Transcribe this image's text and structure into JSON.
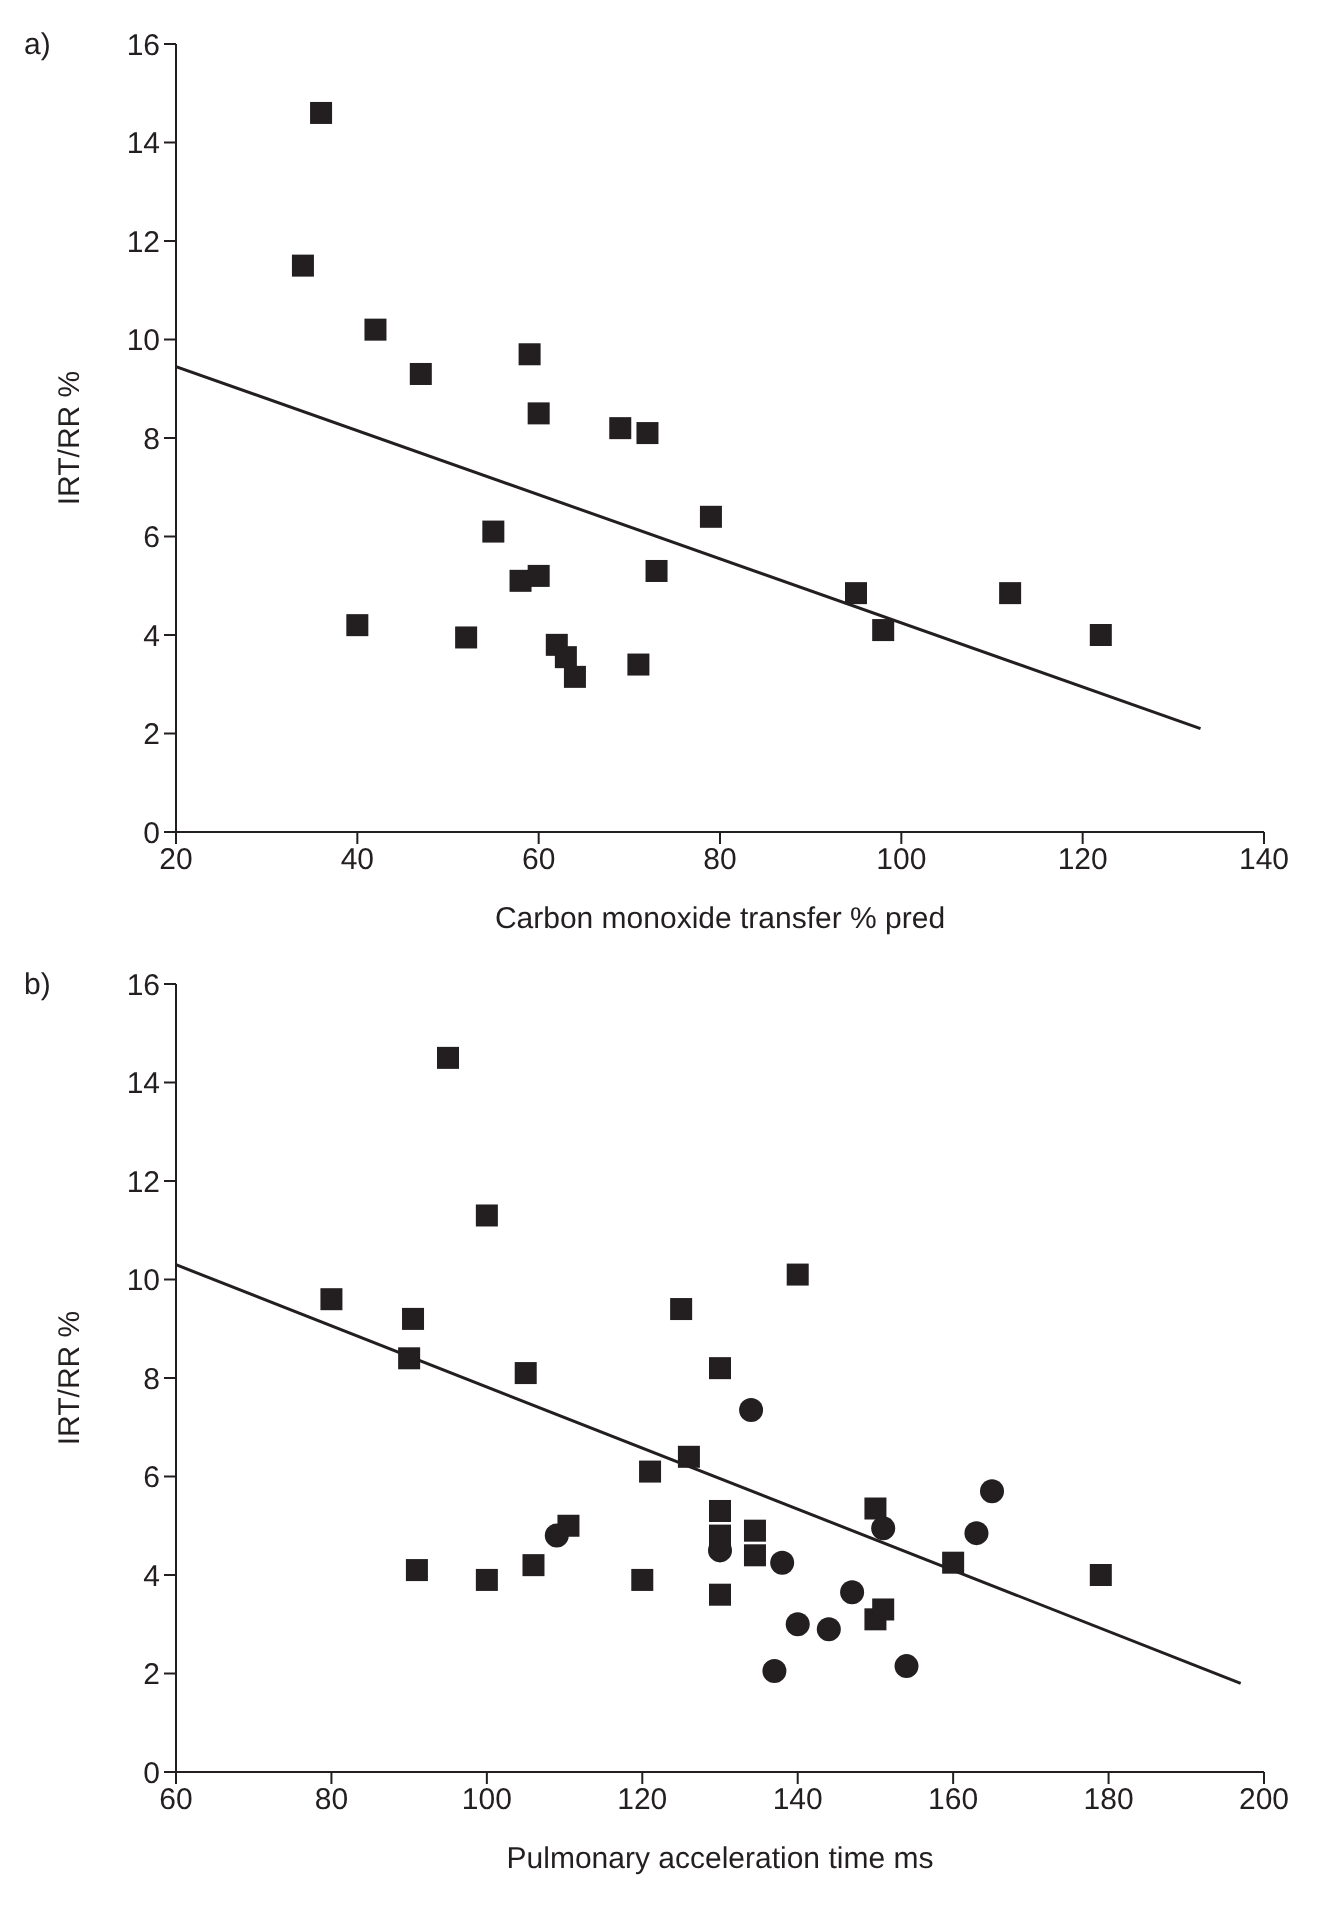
{
  "chart_data": [
    {
      "type": "scatter",
      "annotations": [
        "a)"
      ],
      "xlabel": "Carbon monoxide transfer % pred",
      "ylabel": "IRT/RR %",
      "xlim": [
        20,
        140
      ],
      "xticks": [
        20,
        40,
        60,
        80,
        100,
        120,
        140
      ],
      "ylim": [
        0,
        16
      ],
      "yticks": [
        0,
        2,
        4,
        6,
        8,
        10,
        12,
        14,
        16
      ],
      "grid": false,
      "legend": false,
      "series": [
        {
          "color": "#231f20",
          "marker": "square",
          "x": [
            34,
            36,
            42,
            47,
            40,
            52,
            55,
            58,
            59,
            60,
            60,
            62,
            63,
            64,
            69,
            71,
            72,
            73,
            79,
            95,
            98,
            112,
            122
          ],
          "values": [
            11.5,
            14.6,
            10.2,
            9.3,
            4.2,
            3.95,
            6.1,
            5.1,
            9.7,
            8.5,
            5.2,
            3.8,
            3.55,
            3.15,
            8.2,
            3.4,
            8.1,
            5.3,
            6.4,
            4.85,
            4.1,
            4.85,
            4.0
          ]
        },
        {
          "type": "line",
          "color": "#231f20",
          "marker": "none",
          "x": [
            20,
            133
          ],
          "values": [
            9.45,
            2.1
          ]
        }
      ]
    },
    {
      "type": "scatter",
      "annotations": [
        "b)"
      ],
      "xlabel": "Pulmonary acceleration time ms",
      "ylabel": "IRT/RR %",
      "xlim": [
        60,
        200
      ],
      "xticks": [
        60,
        80,
        100,
        120,
        140,
        160,
        180,
        200
      ],
      "ylim": [
        0,
        16
      ],
      "yticks": [
        0,
        2,
        4,
        6,
        8,
        10,
        12,
        14,
        16
      ],
      "grid": false,
      "legend": false,
      "series": [
        {
          "color": "#231f20",
          "marker": "square",
          "x": [
            80,
            90,
            90.5,
            91,
            95,
            100,
            100,
            105,
            106,
            110.5,
            120,
            121,
            125,
            126,
            130,
            130,
            130,
            130,
            134.5,
            134.5,
            140,
            150,
            150,
            151,
            160,
            179
          ],
          "values": [
            9.6,
            8.4,
            9.2,
            4.1,
            14.5,
            11.3,
            3.9,
            8.1,
            4.2,
            5.0,
            3.9,
            6.1,
            9.4,
            6.4,
            8.2,
            5.3,
            4.8,
            3.6,
            4.9,
            4.4,
            10.1,
            5.35,
            3.1,
            3.3,
            4.25,
            4.0
          ]
        },
        {
          "color": "#231f20",
          "marker": "circle",
          "x": [
            109,
            130,
            134,
            138,
            140,
            144,
            137,
            147,
            151,
            154,
            163,
            165
          ],
          "values": [
            4.8,
            4.5,
            7.35,
            4.25,
            3.0,
            2.9,
            2.05,
            3.65,
            4.95,
            2.15,
            4.85,
            5.7
          ]
        },
        {
          "type": "line",
          "color": "#231f20",
          "marker": "none",
          "x": [
            60,
            197
          ],
          "values": [
            10.3,
            1.8
          ]
        }
      ]
    }
  ]
}
